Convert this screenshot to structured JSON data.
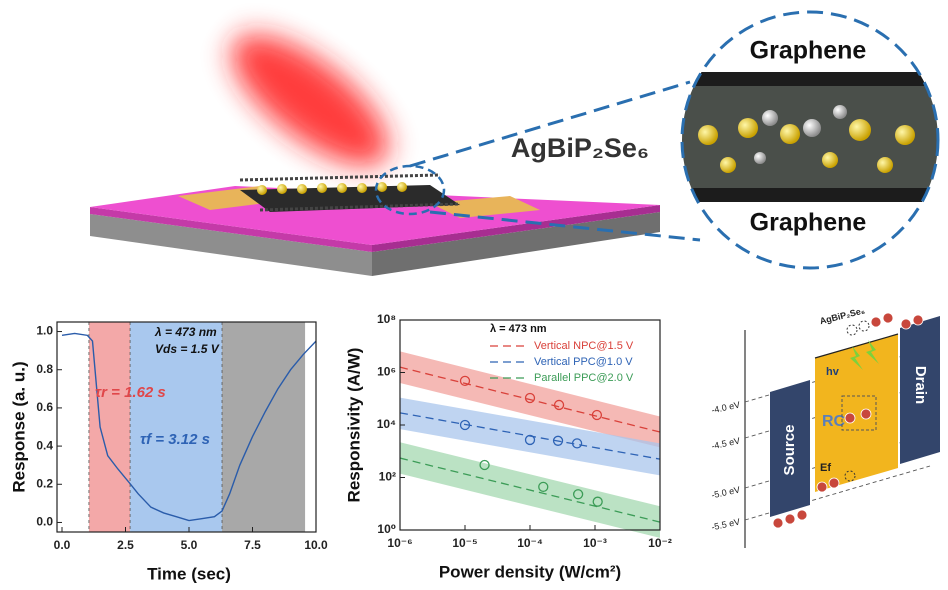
{
  "illustration": {
    "material": "AgBiP₂Se₆",
    "top_layer": "Graphene",
    "bottom_layer": "Graphene"
  },
  "band_diagram": {
    "material": "AgBiP₂Se₆",
    "levels": [
      "-4.0 eV",
      "-4.5 eV",
      "-5.0 eV",
      "-5.5 eV"
    ],
    "source": "Source",
    "drain": "Drain",
    "photon": "hv",
    "center": "RC",
    "fermi": "Ef"
  },
  "chart_data": [
    {
      "type": "line",
      "x_label": "Time (sec)",
      "y_label": "Response (a. u.)",
      "xlim": [
        0,
        10
      ],
      "ylim": [
        -0.05,
        1.05
      ],
      "xticks": [
        {
          "value": 0,
          "label": "0.0"
        },
        {
          "value": 2.5,
          "label": "2.5"
        },
        {
          "value": 5,
          "label": "5.0"
        },
        {
          "value": 7.5,
          "label": "7.5"
        },
        {
          "value": 10,
          "label": "10.0"
        }
      ],
      "yticks": [
        {
          "value": 0,
          "label": "0.0"
        },
        0.2,
        0.4,
        0.6,
        0.8,
        {
          "value": 1,
          "label": "1.0"
        }
      ],
      "regions": [
        {
          "start": 1.06,
          "end": 2.68,
          "color": "#f3a8a8"
        },
        {
          "start": 2.68,
          "end": 6.3,
          "color": "#a9c8ee"
        },
        {
          "start": 6.3,
          "end": 9.57,
          "color": "#a8a8a8"
        }
      ],
      "annotations": [
        "λ = 473 nm",
        "Vds = 1.5 V",
        "τr = 1.62 s",
        "τf = 3.12 s"
      ],
      "color": "#2a5caa",
      "x": [
        0,
        0.5,
        1.0,
        1.2,
        1.3,
        1.5,
        1.8,
        2.2,
        2.7,
        3.0,
        3.5,
        4.0,
        4.5,
        5.0,
        5.5,
        6.0,
        6.3,
        6.6,
        7.0,
        7.5,
        8.0,
        8.5,
        9.0,
        9.5,
        10
      ],
      "values": [
        0.98,
        0.99,
        0.98,
        0.95,
        0.8,
        0.5,
        0.35,
        0.28,
        0.2,
        0.15,
        0.08,
        0.05,
        0.03,
        0.01,
        0.02,
        0.03,
        0.06,
        0.15,
        0.3,
        0.45,
        0.58,
        0.7,
        0.8,
        0.88,
        0.95
      ]
    },
    {
      "type": "scatter",
      "x_label": "Power density (W/cm²)",
      "y_label": "Responsivity (A/W)",
      "log_x": true,
      "log_y": true,
      "xlim": [
        1e-06,
        0.01
      ],
      "ylim": [
        1,
        100000000
      ],
      "xticks": [
        {
          "value": 1e-06,
          "label": "10⁻⁶"
        },
        {
          "value": 1e-05,
          "label": "10⁻⁵"
        },
        {
          "value": 0.0001,
          "label": "10⁻⁴"
        },
        {
          "value": 0.001,
          "label": "10⁻³"
        },
        {
          "value": 0.01,
          "label": "10⁻²"
        }
      ],
      "yticks": [
        {
          "value": 1,
          "label": "10⁰"
        },
        {
          "value": 100,
          "label": "10²"
        },
        {
          "value": 10000,
          "label": "10⁴"
        },
        {
          "value": 1000000,
          "label": "10⁶"
        },
        {
          "value": 100000000,
          "label": "10⁸"
        }
      ],
      "annotation": "λ = 473 nm",
      "series": [
        {
          "name": "Vertical NPC@1.5 V",
          "color": "#d9413a",
          "band_color": "#f2a19c",
          "x": [
            1e-05,
            0.0001,
            0.00028,
            0.00107
          ],
          "values": [
            480000,
            107000,
            58000,
            24000
          ],
          "fit": {
            "x": [
              1e-06,
              0.01
            ],
            "values": [
              1600000,
              5400
            ],
            "lower": [
              400000,
              1400
            ],
            "upper": [
              6400000,
              21000
            ]
          }
        },
        {
          "name": "Vertical PPC@1.0 V",
          "color": "#2e63b5",
          "band_color": "#a9c5ec",
          "x": [
            1e-05,
            0.0001,
            0.00027,
            0.00053
          ],
          "values": [
            10000,
            2700,
            2500,
            2000
          ],
          "fit": {
            "x": [
              1e-06,
              0.01
            ],
            "values": [
              29000,
              500
            ],
            "lower": [
              7000,
              120
            ],
            "upper": [
              110000,
              2000
            ]
          }
        },
        {
          "name": "Parallel PPC@2.0 V",
          "color": "#3c9c57",
          "band_color": "#a4d8b0",
          "x": [
            2e-05,
            0.00016,
            0.00055,
            0.0011
          ],
          "values": [
            300,
            44,
            23,
            12
          ],
          "fit": {
            "x": [
              1e-06,
              0.01
            ],
            "values": [
              550,
              2
            ],
            "lower": [
              140,
              0.5
            ],
            "upper": [
              2200,
              8
            ]
          }
        }
      ]
    }
  ]
}
